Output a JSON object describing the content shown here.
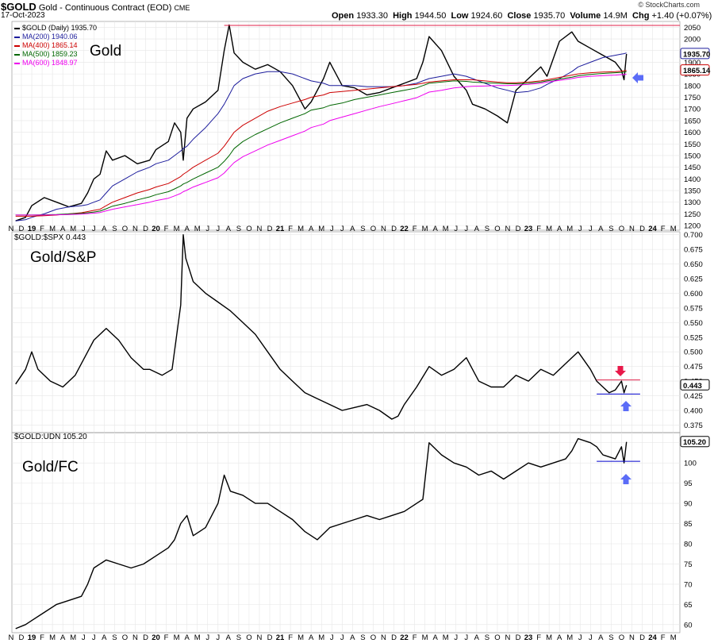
{
  "header": {
    "symbol": "$GOLD",
    "description": "Gold - Continuous Contract (EOD)",
    "exchange": "CME",
    "date": "17-Oct-2023",
    "open_label": "Open",
    "open": "1933.30",
    "high_label": "High",
    "high": "1944.50",
    "low_label": "Low",
    "low": "1924.60",
    "close_label": "Close",
    "close": "1935.70",
    "volume_label": "Volume",
    "volume": "14.9M",
    "chg_label": "Chg",
    "chg": "+1.40 (+0.07%)",
    "watermark": "© StockCharts.com"
  },
  "panels": {
    "gold": {
      "label": "Gold",
      "legend": [
        {
          "text": "$GOLD (Daily) 1935.70",
          "color": "#000000"
        },
        {
          "text": "MA(200) 1940.06",
          "color": "#1c1c9c"
        },
        {
          "text": "MA(400) 1865.14",
          "color": "#cc0000"
        },
        {
          "text": "MA(500) 1859.23",
          "color": "#006600"
        },
        {
          "text": "MA(600) 1848.97",
          "color": "#ee00ee"
        }
      ],
      "last_tags": [
        "1935.70",
        "1865.14"
      ]
    },
    "spx": {
      "label": "Gold/S&P",
      "title": "$GOLD:$SPX 0.443",
      "last_tag": "0.443"
    },
    "udn": {
      "label": "Gold/FC",
      "title": "$GOLD:UDN 105.20",
      "last_tag": "105.20"
    }
  },
  "x_axis": {
    "labels": [
      "N",
      "D",
      "19",
      "F",
      "M",
      "A",
      "M",
      "J",
      "J",
      "A",
      "S",
      "O",
      "N",
      "D",
      "20",
      "F",
      "M",
      "A",
      "M",
      "J",
      "J",
      "A",
      "S",
      "O",
      "N",
      "D",
      "21",
      "F",
      "M",
      "A",
      "M",
      "J",
      "J",
      "A",
      "S",
      "O",
      "N",
      "D",
      "22",
      "F",
      "M",
      "A",
      "M",
      "J",
      "J",
      "A",
      "S",
      "O",
      "N",
      "D",
      "23",
      "F",
      "M",
      "A",
      "M",
      "J",
      "J",
      "A",
      "S",
      "O",
      "N",
      "D",
      "24",
      "F",
      "M"
    ],
    "range": [
      "2018-11",
      "2024-03"
    ]
  },
  "colors": {
    "price": "#000000",
    "ma200": "#1c1c9c",
    "ma400": "#cc0000",
    "ma500": "#006600",
    "ma600": "#ee00ee",
    "resistance": "#e0204a",
    "support": "#0000cc",
    "arrow_up": "#5b6cf7",
    "arrow_down": "#e8194a",
    "grid": "#e6e6e6"
  },
  "chart_data": [
    {
      "type": "line",
      "title": "$GOLD Gold - Continuous Contract (EOD)",
      "ylim": [
        1180,
        2075
      ],
      "yticks": [
        1200,
        1250,
        1300,
        1350,
        1400,
        1450,
        1500,
        1550,
        1600,
        1650,
        1700,
        1750,
        1800,
        1850,
        1900,
        1950,
        2000,
        2050
      ],
      "x": [
        2018.87,
        2018.95,
        2019.0,
        2019.1,
        2019.2,
        2019.3,
        2019.4,
        2019.45,
        2019.5,
        2019.55,
        2019.6,
        2019.65,
        2019.75,
        2019.85,
        2019.95,
        2020.0,
        2020.1,
        2020.15,
        2020.2,
        2020.22,
        2020.25,
        2020.3,
        2020.4,
        2020.5,
        2020.55,
        2020.59,
        2020.63,
        2020.7,
        2020.8,
        2020.9,
        2021.0,
        2021.1,
        2021.2,
        2021.25,
        2021.35,
        2021.4,
        2021.5,
        2021.6,
        2021.7,
        2021.8,
        2021.9,
        2022.0,
        2022.1,
        2022.15,
        2022.2,
        2022.3,
        2022.4,
        2022.5,
        2022.55,
        2022.65,
        2022.75,
        2022.83,
        2022.9,
        2023.0,
        2023.1,
        2023.15,
        2023.25,
        2023.35,
        2023.4,
        2023.5,
        2023.6,
        2023.7,
        2023.75,
        2023.77,
        2023.79
      ],
      "series": [
        {
          "name": "$GOLD (Daily) 1935.70",
          "values": [
            1220,
            1235,
            1285,
            1320,
            1300,
            1280,
            1295,
            1340,
            1400,
            1420,
            1520,
            1480,
            1500,
            1465,
            1480,
            1525,
            1560,
            1640,
            1600,
            1480,
            1660,
            1700,
            1730,
            1780,
            1950,
            2060,
            1940,
            1900,
            1870,
            1890,
            1860,
            1800,
            1700,
            1730,
            1830,
            1900,
            1800,
            1790,
            1760,
            1770,
            1790,
            1810,
            1830,
            1900,
            2010,
            1950,
            1840,
            1780,
            1720,
            1700,
            1670,
            1640,
            1780,
            1830,
            1880,
            1840,
            1990,
            2030,
            1990,
            1960,
            1930,
            1900,
            1865,
            1825,
            1935.7
          ]
        },
        {
          "name": "MA(200) 1940.06",
          "values": [
            1220,
            1225,
            1235,
            1250,
            1270,
            1280,
            1285,
            1290,
            1300,
            1310,
            1340,
            1370,
            1400,
            1430,
            1450,
            1465,
            1480,
            1500,
            1520,
            1530,
            1540,
            1570,
            1620,
            1680,
            1720,
            1760,
            1800,
            1830,
            1850,
            1860,
            1860,
            1850,
            1830,
            1820,
            1810,
            1800,
            1800,
            1800,
            1795,
            1795,
            1795,
            1800,
            1810,
            1820,
            1830,
            1840,
            1850,
            1840,
            1830,
            1810,
            1790,
            1780,
            1770,
            1775,
            1790,
            1805,
            1830,
            1860,
            1880,
            1900,
            1920,
            1930,
            1935,
            1937,
            1940.06
          ]
        },
        {
          "name": "MA(400) 1865.14",
          "values": [
            1240,
            1240,
            1240,
            1242,
            1245,
            1250,
            1255,
            1260,
            1265,
            1270,
            1285,
            1300,
            1320,
            1340,
            1355,
            1365,
            1380,
            1395,
            1410,
            1420,
            1430,
            1450,
            1480,
            1510,
            1540,
            1570,
            1600,
            1630,
            1660,
            1690,
            1710,
            1725,
            1740,
            1750,
            1760,
            1770,
            1775,
            1780,
            1785,
            1790,
            1795,
            1800,
            1805,
            1810,
            1815,
            1820,
            1825,
            1825,
            1825,
            1820,
            1815,
            1812,
            1812,
            1815,
            1820,
            1825,
            1835,
            1845,
            1850,
            1855,
            1858,
            1860,
            1862,
            1863,
            1865.14
          ]
        },
        {
          "name": "MA(500) 1859.23",
          "values": [
            1245,
            1245,
            1245,
            1246,
            1247,
            1250,
            1252,
            1255,
            1258,
            1262,
            1272,
            1283,
            1295,
            1310,
            1323,
            1332,
            1345,
            1357,
            1370,
            1378,
            1385,
            1400,
            1425,
            1450,
            1475,
            1500,
            1530,
            1560,
            1590,
            1615,
            1640,
            1660,
            1680,
            1695,
            1705,
            1715,
            1725,
            1740,
            1750,
            1760,
            1770,
            1780,
            1790,
            1800,
            1810,
            1815,
            1820,
            1818,
            1815,
            1812,
            1810,
            1808,
            1808,
            1810,
            1815,
            1820,
            1828,
            1836,
            1842,
            1848,
            1852,
            1855,
            1857,
            1858,
            1859.23
          ]
        },
        {
          "name": "MA(600) 1848.97",
          "values": [
            1245,
            1245,
            1245,
            1245,
            1246,
            1247,
            1249,
            1251,
            1253,
            1256,
            1263,
            1270,
            1280,
            1290,
            1300,
            1307,
            1317,
            1327,
            1338,
            1345,
            1352,
            1365,
            1385,
            1405,
            1425,
            1448,
            1470,
            1495,
            1520,
            1545,
            1565,
            1585,
            1605,
            1620,
            1635,
            1650,
            1665,
            1680,
            1695,
            1710,
            1722,
            1735,
            1748,
            1760,
            1772,
            1780,
            1790,
            1795,
            1797,
            1798,
            1800,
            1800,
            1802,
            1805,
            1810,
            1815,
            1822,
            1830,
            1835,
            1840,
            1843,
            1845,
            1847,
            1848,
            1848.97
          ]
        }
      ],
      "annotations": [
        {
          "type": "hline",
          "y": 2058
        }
      ]
    },
    {
      "type": "line",
      "title": "$GOLD:$SPX 0.443",
      "ylim": [
        0.362,
        0.705
      ],
      "yticks": [
        0.375,
        0.4,
        0.425,
        0.45,
        0.475,
        0.5,
        0.525,
        0.55,
        0.575,
        0.6,
        0.625,
        0.65,
        0.675,
        0.7
      ],
      "x": [
        2018.87,
        2018.95,
        2019.0,
        2019.05,
        2019.15,
        2019.25,
        2019.35,
        2019.45,
        2019.5,
        2019.6,
        2019.7,
        2019.8,
        2019.9,
        2019.95,
        2020.05,
        2020.13,
        2020.2,
        2020.22,
        2020.24,
        2020.3,
        2020.4,
        2020.5,
        2020.6,
        2020.7,
        2020.8,
        2020.9,
        2021.0,
        2021.1,
        2021.2,
        2021.3,
        2021.4,
        2021.5,
        2021.6,
        2021.7,
        2021.8,
        2021.9,
        2021.95,
        2022.0,
        2022.1,
        2022.2,
        2022.3,
        2022.4,
        2022.5,
        2022.6,
        2022.7,
        2022.8,
        2022.9,
        2023.0,
        2023.1,
        2023.2,
        2023.3,
        2023.35,
        2023.4,
        2023.5,
        2023.55,
        2023.6,
        2023.65,
        2023.7,
        2023.75,
        2023.77,
        2023.79
      ],
      "series": [
        {
          "name": "$GOLD:$SPX 0.443",
          "values": [
            0.445,
            0.47,
            0.5,
            0.47,
            0.45,
            0.44,
            0.46,
            0.5,
            0.52,
            0.54,
            0.52,
            0.49,
            0.47,
            0.47,
            0.46,
            0.47,
            0.58,
            0.7,
            0.66,
            0.62,
            0.6,
            0.585,
            0.57,
            0.55,
            0.53,
            0.5,
            0.47,
            0.45,
            0.43,
            0.42,
            0.41,
            0.4,
            0.405,
            0.41,
            0.4,
            0.385,
            0.39,
            0.41,
            0.44,
            0.475,
            0.46,
            0.47,
            0.49,
            0.45,
            0.44,
            0.44,
            0.46,
            0.45,
            0.47,
            0.46,
            0.48,
            0.49,
            0.5,
            0.47,
            0.45,
            0.44,
            0.43,
            0.435,
            0.45,
            0.43,
            0.443
          ]
        }
      ],
      "annotations": [
        {
          "type": "hline",
          "y": 0.452
        },
        {
          "type": "hline",
          "y": 0.428
        }
      ]
    },
    {
      "type": "line",
      "title": "$GOLD:UDN 105.20",
      "ylim": [
        58,
        107.5
      ],
      "yticks": [
        60,
        65,
        70,
        75,
        80,
        85,
        90,
        95,
        100,
        105
      ],
      "x": [
        2018.87,
        2018.95,
        2019.0,
        2019.1,
        2019.2,
        2019.3,
        2019.4,
        2019.45,
        2019.5,
        2019.6,
        2019.7,
        2019.8,
        2019.9,
        2020.0,
        2020.1,
        2020.15,
        2020.2,
        2020.25,
        2020.3,
        2020.4,
        2020.5,
        2020.55,
        2020.6,
        2020.7,
        2020.8,
        2020.9,
        2021.0,
        2021.1,
        2021.2,
        2021.3,
        2021.4,
        2021.5,
        2021.6,
        2021.7,
        2021.8,
        2021.9,
        2022.0,
        2022.05,
        2022.1,
        2022.15,
        2022.2,
        2022.3,
        2022.4,
        2022.5,
        2022.6,
        2022.7,
        2022.8,
        2022.9,
        2023.0,
        2023.1,
        2023.2,
        2023.3,
        2023.35,
        2023.4,
        2023.5,
        2023.55,
        2023.6,
        2023.7,
        2023.75,
        2023.77,
        2023.79
      ],
      "series": [
        {
          "name": "$GOLD:UDN 105.20",
          "values": [
            59,
            60,
            61,
            63,
            65,
            66,
            67,
            70,
            74,
            76,
            75,
            74,
            75,
            77,
            79,
            81,
            85,
            87,
            82,
            84,
            90,
            97,
            93,
            92,
            90,
            90,
            88,
            86,
            83,
            81,
            84,
            85,
            86,
            87,
            86,
            87,
            88,
            89,
            90,
            91,
            105,
            102,
            100,
            99,
            97,
            98,
            96,
            98,
            100,
            99,
            100,
            101,
            103,
            106,
            105,
            104,
            102,
            101,
            104,
            100,
            105.2
          ]
        }
      ],
      "annotations": [
        {
          "type": "hline",
          "y": 100.4
        }
      ]
    }
  ]
}
